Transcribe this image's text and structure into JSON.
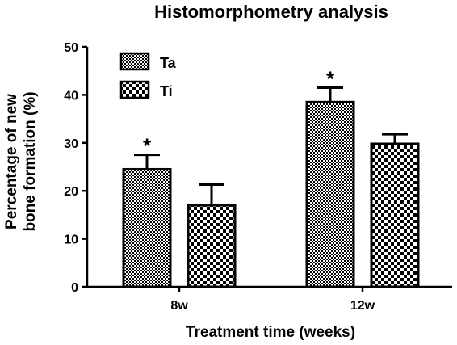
{
  "chart_data": {
    "type": "bar",
    "title": "Histomorphometry analysis",
    "xlabel": "Treatment time (weeks)",
    "ylabel_lines": [
      "Percentage of new",
      "bone formation (%)"
    ],
    "categories": [
      "8w",
      "12w"
    ],
    "ylim": [
      0,
      50
    ],
    "yticks": [
      0,
      10,
      20,
      30,
      40,
      50
    ],
    "grid": false,
    "legend_position": "top-left",
    "series": [
      {
        "name": "Ta",
        "values": [
          24.5,
          38.5
        ],
        "errors": [
          3.0,
          3.0
        ],
        "pattern": "fine-checker"
      },
      {
        "name": "Ti",
        "values": [
          17.0,
          29.8
        ],
        "errors": [
          4.3,
          2.0
        ],
        "pattern": "coarse-checker"
      }
    ],
    "annotations": [
      {
        "text": "*",
        "category": 0,
        "series": 0
      },
      {
        "text": "*",
        "category": 1,
        "series": 0
      }
    ]
  }
}
